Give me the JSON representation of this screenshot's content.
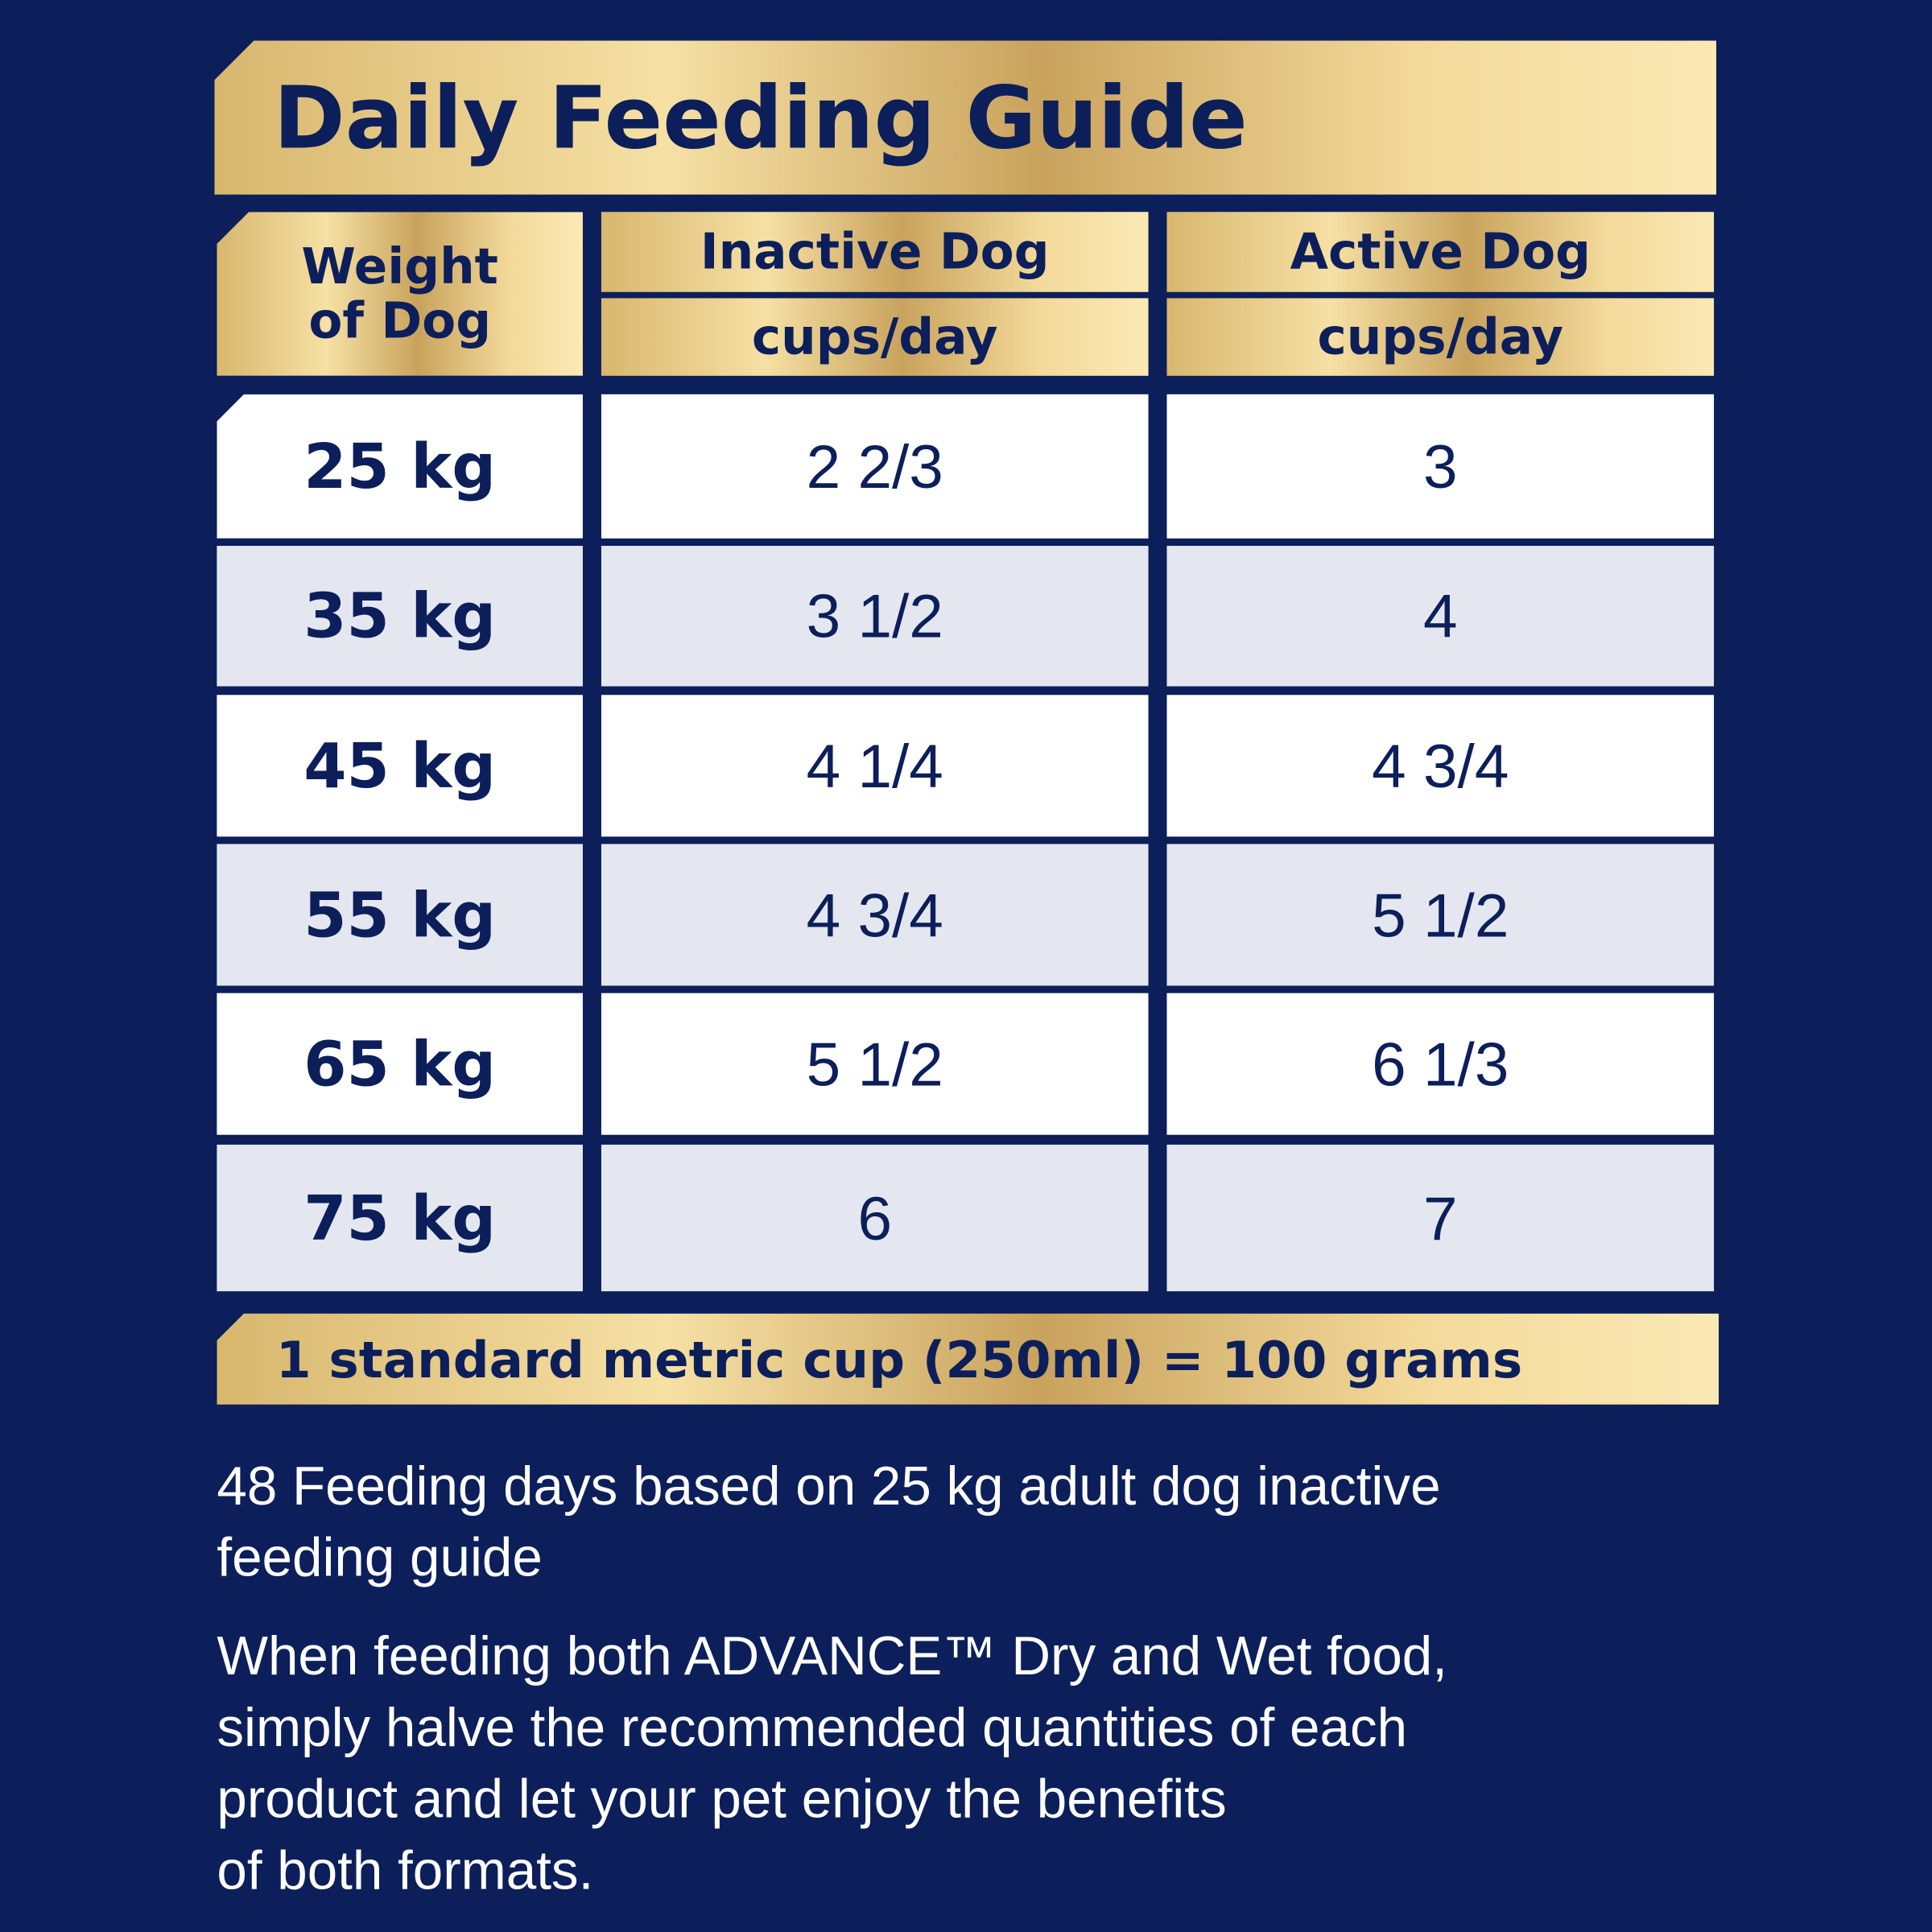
{
  "header": {
    "title": "Daily Feeding Guide"
  },
  "table": {
    "columns": [
      {
        "label": "Weight of Dog"
      },
      {
        "label": "Inactive Dog",
        "unit": "cups/day"
      },
      {
        "label": "Active Dog",
        "unit": "cups/day"
      }
    ],
    "rows": [
      [
        "25 kg",
        "2 2/3",
        "3"
      ],
      [
        "35 kg",
        "3 1/2",
        "4"
      ],
      [
        "45 kg",
        "4 1/4",
        "4 3/4"
      ],
      [
        "55 kg",
        "4 3/4",
        "5 1/2"
      ],
      [
        "65 kg",
        "5 1/2",
        "6 1/3"
      ],
      [
        "75 kg",
        "6",
        "7"
      ]
    ]
  },
  "note": "1 standard metric cup (250ml) = 100 grams",
  "paragraphs": [
    [
      "48 Feeding days based on 25 kg adult dog inactive",
      "feeding guide"
    ],
    [
      "When feeding both ADVANCE™ Dry and Wet food,",
      "simply halve the recommended quantities of each",
      "product and let your pet enjoy the benefits",
      "of both formats."
    ]
  ]
}
